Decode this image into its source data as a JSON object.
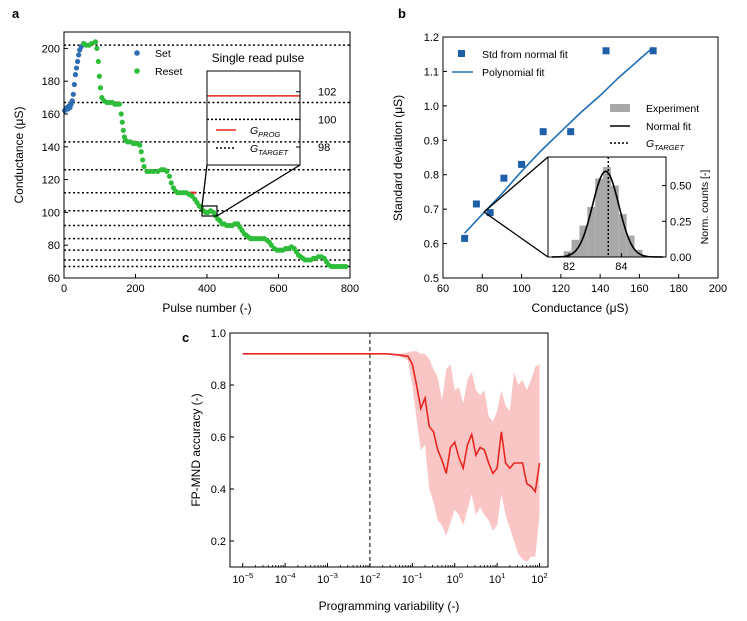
{
  "colors": {
    "set": "#2e6db4",
    "reset": "#2ebd3a",
    "prog": "#e8261f",
    "target": "#000000",
    "marker": "#1f5fa8",
    "curve": "#1f6fb8",
    "hist": "#a8a8a8",
    "band": "#f9c5c5",
    "line": "#e8261f"
  },
  "chart_data": [
    {
      "type": "scatter",
      "panel": "a",
      "xlabel": "Pulse number (-)",
      "ylabel": "Conductance (μS)",
      "xlim": [
        0,
        800
      ],
      "ylim": [
        60,
        210
      ],
      "xticks": [
        "0",
        "200",
        "400",
        "600",
        "800"
      ],
      "yticks": [
        "60",
        "80",
        "100",
        "120",
        "140",
        "160",
        "180",
        "200"
      ],
      "legend": {
        "set": "Set",
        "reset": "Reset"
      },
      "target_levels": [
        202,
        167,
        143,
        126,
        112,
        101,
        92,
        84,
        77,
        71,
        67
      ],
      "prog_segments": [
        [
          55,
          82,
          202
        ],
        [
          135,
          155,
          167
        ],
        [
          180,
          205,
          143
        ],
        [
          265,
          290,
          126
        ],
        [
          345,
          370,
          112
        ],
        [
          395,
          420,
          100
        ],
        [
          470,
          495,
          92
        ],
        [
          540,
          565,
          84
        ],
        [
          600,
          625,
          77
        ],
        [
          680,
          705,
          71
        ],
        [
          770,
          790,
          67
        ]
      ],
      "set_points": [
        [
          2,
          162
        ],
        [
          5,
          163
        ],
        [
          8,
          164
        ],
        [
          11,
          163
        ],
        [
          14,
          165
        ],
        [
          17,
          164
        ],
        [
          20,
          166
        ],
        [
          23,
          168
        ],
        [
          26,
          172
        ],
        [
          29,
          178
        ],
        [
          32,
          184
        ],
        [
          35,
          188
        ],
        [
          38,
          192
        ],
        [
          41,
          196
        ],
        [
          44,
          199
        ],
        [
          48,
          201
        ]
      ],
      "reset_points": [
        [
          55,
          203
        ],
        [
          62,
          202
        ],
        [
          70,
          202
        ],
        [
          78,
          203
        ],
        [
          88,
          204
        ],
        [
          92,
          200
        ],
        [
          96,
          192
        ],
        [
          99,
          183
        ],
        [
          102,
          176
        ],
        [
          106,
          170
        ],
        [
          112,
          168
        ],
        [
          120,
          167
        ],
        [
          128,
          167
        ],
        [
          135,
          167
        ],
        [
          142,
          166
        ],
        [
          148,
          166
        ],
        [
          155,
          166
        ],
        [
          160,
          160
        ],
        [
          163,
          155
        ],
        [
          166,
          150
        ],
        [
          169,
          146
        ],
        [
          172,
          144
        ],
        [
          178,
          143
        ],
        [
          186,
          143
        ],
        [
          194,
          142
        ],
        [
          200,
          142
        ],
        [
          206,
          142
        ],
        [
          212,
          141
        ],
        [
          216,
          137
        ],
        [
          220,
          132
        ],
        [
          224,
          128
        ],
        [
          232,
          125
        ],
        [
          240,
          125
        ],
        [
          250,
          125
        ],
        [
          262,
          125
        ],
        [
          272,
          126
        ],
        [
          280,
          126
        ],
        [
          288,
          125
        ],
        [
          295,
          122
        ],
        [
          300,
          118
        ],
        [
          306,
          115
        ],
        [
          312,
          113
        ],
        [
          318,
          112
        ],
        [
          326,
          112
        ],
        [
          334,
          112
        ],
        [
          342,
          112
        ],
        [
          350,
          111
        ],
        [
          358,
          110
        ],
        [
          366,
          108
        ],
        [
          372,
          106
        ],
        [
          378,
          104
        ],
        [
          384,
          103
        ],
        [
          390,
          101
        ],
        [
          396,
          100
        ],
        [
          402,
          100
        ],
        [
          410,
          101
        ],
        [
          418,
          100
        ],
        [
          424,
          98
        ],
        [
          430,
          96
        ],
        [
          436,
          95
        ],
        [
          442,
          93
        ],
        [
          448,
          93
        ],
        [
          455,
          92
        ],
        [
          462,
          92
        ],
        [
          470,
          92
        ],
        [
          478,
          93
        ],
        [
          486,
          93
        ],
        [
          492,
          91
        ],
        [
          498,
          89
        ],
        [
          504,
          87
        ],
        [
          510,
          86
        ],
        [
          516,
          85
        ],
        [
          522,
          84
        ],
        [
          528,
          84
        ],
        [
          536,
          84
        ],
        [
          544,
          84
        ],
        [
          552,
          84
        ],
        [
          560,
          84
        ],
        [
          568,
          83
        ],
        [
          574,
          82
        ],
        [
          580,
          80
        ],
        [
          588,
          78
        ],
        [
          596,
          77
        ],
        [
          604,
          77
        ],
        [
          612,
          77
        ],
        [
          620,
          78
        ],
        [
          628,
          78
        ],
        [
          636,
          79
        ],
        [
          644,
          78
        ],
        [
          650,
          76
        ],
        [
          656,
          74
        ],
        [
          662,
          73
        ],
        [
          668,
          72
        ],
        [
          675,
          71
        ],
        [
          682,
          71
        ],
        [
          690,
          71
        ],
        [
          698,
          72
        ],
        [
          704,
          72
        ],
        [
          712,
          73
        ],
        [
          720,
          73
        ],
        [
          728,
          72
        ],
        [
          734,
          70
        ],
        [
          740,
          68
        ],
        [
          748,
          67
        ],
        [
          756,
          67
        ],
        [
          764,
          67
        ],
        [
          772,
          67
        ],
        [
          780,
          67
        ],
        [
          788,
          67
        ]
      ],
      "inset": {
        "title": "Single read pulse",
        "yticks": [
          "98",
          "100",
          "102"
        ],
        "ylim": [
          96.7,
          103.5
        ],
        "prog_level": 101.7,
        "target_level": 100.0,
        "legend": {
          "prog": "G",
          "prog_sub": "PROG",
          "target": "G",
          "target_sub": "TARGET"
        }
      }
    },
    {
      "type": "scatter",
      "panel": "b",
      "xlabel": "Conductance (μS)",
      "ylabel": "Standard deviation (μS)",
      "xlim": [
        60,
        200
      ],
      "ylim": [
        0.5,
        1.2
      ],
      "xticks": [
        "60",
        "80",
        "100",
        "120",
        "140",
        "160",
        "180",
        "200"
      ],
      "yticks": [
        "0.5",
        "0.6",
        "0.7",
        "0.8",
        "0.9",
        "1.0",
        "1.1",
        "1.2"
      ],
      "points": [
        [
          71,
          0.615
        ],
        [
          77,
          0.715
        ],
        [
          84,
          0.69
        ],
        [
          91,
          0.79
        ],
        [
          100,
          0.83
        ],
        [
          111,
          0.925
        ],
        [
          125,
          0.925
        ],
        [
          143,
          1.16
        ],
        [
          167,
          1.16
        ]
      ],
      "fit": [
        [
          71,
          0.63
        ],
        [
          80,
          0.685
        ],
        [
          90,
          0.745
        ],
        [
          100,
          0.81
        ],
        [
          110,
          0.87
        ],
        [
          120,
          0.925
        ],
        [
          130,
          0.98
        ],
        [
          140,
          1.03
        ],
        [
          150,
          1.085
        ],
        [
          160,
          1.135
        ],
        [
          167,
          1.17
        ]
      ],
      "legend": {
        "std": "Std from normal fit",
        "poly": "Polynomial fit"
      },
      "inset": {
        "xticks": [
          "82",
          "84"
        ],
        "yticks": [
          "0.00",
          "0.25",
          "0.50"
        ],
        "ylabel": "Norm. counts [-]",
        "xlim": [
          81.2,
          85.7
        ],
        "ylim": [
          0,
          0.7
        ],
        "hist_bins": [
          81.8,
          82.1,
          82.4,
          82.7,
          83.0,
          83.3,
          83.6,
          83.9,
          84.2,
          84.5,
          84.8
        ],
        "hist_heights": [
          0.04,
          0.12,
          0.22,
          0.35,
          0.55,
          0.63,
          0.5,
          0.3,
          0.15,
          0.05
        ],
        "normal_mean": 83.4,
        "normal_sd": 0.5,
        "target": 83.5,
        "legend": {
          "exp": "Experiment",
          "fit": "Normal fit",
          "target": "G",
          "target_sub": "TARGET"
        }
      }
    },
    {
      "type": "line",
      "panel": "c",
      "xlabel": "Programming variability (-)",
      "ylabel": "FP-MND accuracy (-)",
      "xscale": "log",
      "xlim_exp": [
        -5.3,
        2.2
      ],
      "ylim": [
        0.1,
        1.0
      ],
      "xtick_exponents": [
        -5,
        -4,
        -3,
        -2,
        -1,
        0,
        1,
        2
      ],
      "yticks": [
        "0.2",
        "0.4",
        "0.6",
        "0.8",
        "1.0"
      ],
      "vline_exp": -2,
      "series_x_exp": [
        -5,
        -4,
        -3,
        -2,
        -1.6,
        -1.3,
        -1.1,
        -1.0,
        -0.9,
        -0.8,
        -0.7,
        -0.6,
        -0.5,
        -0.4,
        -0.3,
        -0.2,
        -0.1,
        0.0,
        0.1,
        0.2,
        0.3,
        0.4,
        0.5,
        0.6,
        0.7,
        0.8,
        0.9,
        1.0,
        1.1,
        1.2,
        1.3,
        1.4,
        1.5,
        1.6,
        1.7,
        1.8,
        1.9,
        2.0
      ],
      "mean": [
        0.92,
        0.92,
        0.92,
        0.92,
        0.92,
        0.915,
        0.91,
        0.88,
        0.8,
        0.71,
        0.75,
        0.64,
        0.62,
        0.55,
        0.51,
        0.46,
        0.56,
        0.58,
        0.52,
        0.48,
        0.57,
        0.61,
        0.53,
        0.56,
        0.55,
        0.5,
        0.46,
        0.48,
        0.62,
        0.5,
        0.48,
        0.5,
        0.5,
        0.5,
        0.42,
        0.41,
        0.39,
        0.5
      ],
      "upper": [
        0.92,
        0.92,
        0.92,
        0.92,
        0.92,
        0.92,
        0.925,
        0.93,
        0.93,
        0.92,
        0.92,
        0.9,
        0.86,
        0.83,
        0.74,
        0.86,
        0.88,
        0.78,
        0.79,
        0.73,
        0.82,
        0.85,
        0.78,
        0.76,
        0.78,
        0.68,
        0.66,
        0.7,
        0.78,
        0.72,
        0.7,
        0.85,
        0.8,
        0.82,
        0.78,
        0.82,
        0.87,
        0.88
      ],
      "lower": [
        0.92,
        0.92,
        0.92,
        0.92,
        0.92,
        0.91,
        0.895,
        0.8,
        0.67,
        0.55,
        0.57,
        0.4,
        0.35,
        0.28,
        0.26,
        0.22,
        0.27,
        0.32,
        0.3,
        0.26,
        0.32,
        0.38,
        0.3,
        0.33,
        0.3,
        0.28,
        0.24,
        0.26,
        0.38,
        0.3,
        0.25,
        0.2,
        0.15,
        0.13,
        0.12,
        0.14,
        0.14,
        0.3
      ]
    }
  ],
  "panel_labels": {
    "a": "a",
    "b": "b",
    "c": "c"
  }
}
